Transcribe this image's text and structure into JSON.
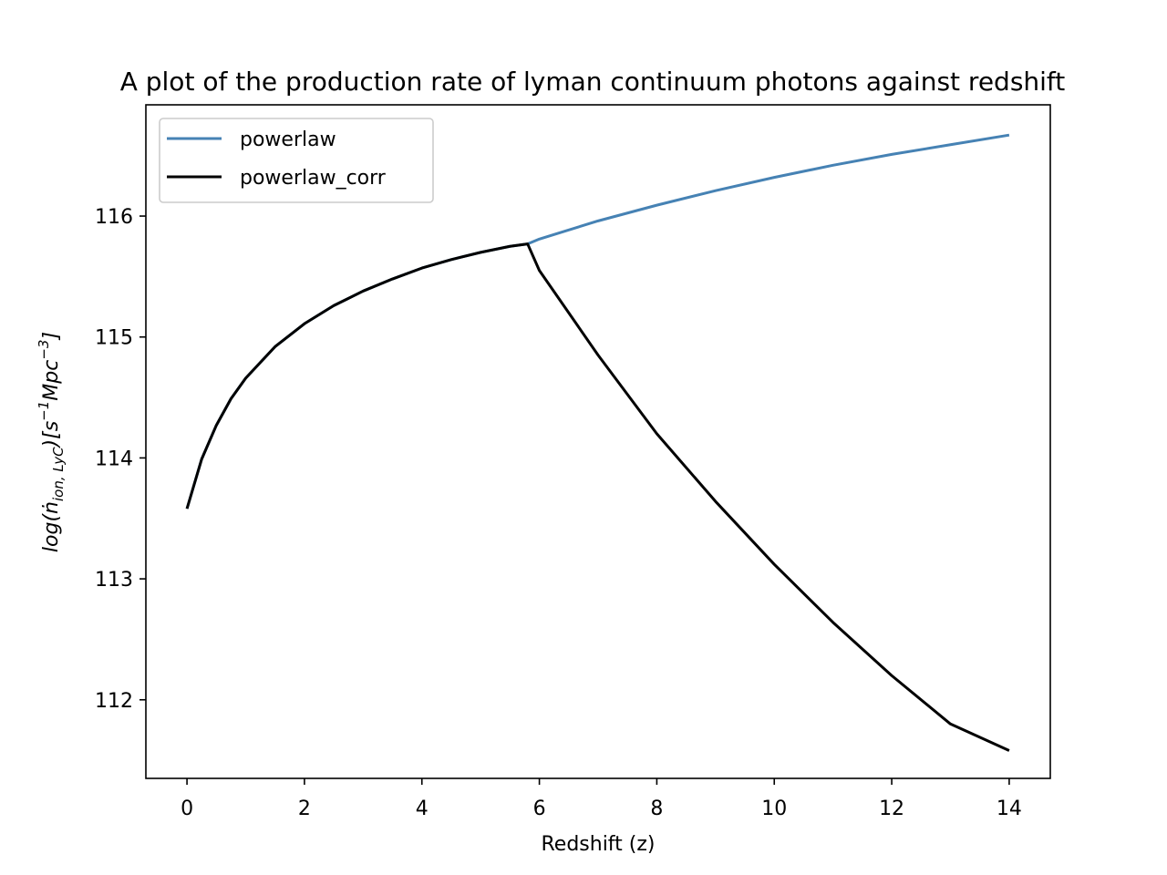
{
  "chart_data": {
    "type": "line",
    "title": "A plot of the production rate of lyman continuum photons against redshift",
    "xlabel": "Redshift (z)",
    "ylabel": {
      "prefix": "log(",
      "ndot": "ṅ",
      "sub": "ion, LyC",
      "mid": ")[s",
      "sup1": "−1",
      "mid2": "Mpc",
      "sup2": "−3",
      "end": "]"
    },
    "xlim": [
      -0.7,
      14.7
    ],
    "ylim": [
      111.35,
      116.92
    ],
    "xticks": [
      0,
      2,
      4,
      6,
      8,
      10,
      12,
      14
    ],
    "yticks": [
      112,
      113,
      114,
      115,
      116
    ],
    "grid": false,
    "legend_position": "top-left",
    "series": [
      {
        "name": "powerlaw",
        "color": "#4682b4",
        "x": [
          0,
          0.25,
          0.5,
          0.75,
          1,
          1.5,
          2,
          2.5,
          3,
          3.5,
          4,
          4.5,
          5,
          5.5,
          5.8,
          6,
          7,
          8,
          9,
          10,
          11,
          12,
          13,
          14
        ],
        "y": [
          113.58,
          113.99,
          114.27,
          114.49,
          114.66,
          114.92,
          115.11,
          115.26,
          115.38,
          115.48,
          115.57,
          115.64,
          115.7,
          115.75,
          115.77,
          115.81,
          115.96,
          116.09,
          116.21,
          116.32,
          116.42,
          116.51,
          116.59,
          116.67
        ]
      },
      {
        "name": "powerlaw_corr",
        "color": "#000000",
        "x": [
          0,
          0.25,
          0.5,
          0.75,
          1,
          1.5,
          2,
          2.5,
          3,
          3.5,
          4,
          4.5,
          5,
          5.5,
          5.8,
          6,
          7,
          8,
          9,
          10,
          11,
          12,
          13,
          14
        ],
        "y": [
          113.58,
          113.99,
          114.27,
          114.49,
          114.66,
          114.92,
          115.11,
          115.26,
          115.38,
          115.48,
          115.57,
          115.64,
          115.7,
          115.75,
          115.77,
          115.55,
          114.85,
          114.2,
          113.64,
          113.12,
          112.64,
          112.2,
          111.8,
          111.58
        ]
      }
    ]
  }
}
